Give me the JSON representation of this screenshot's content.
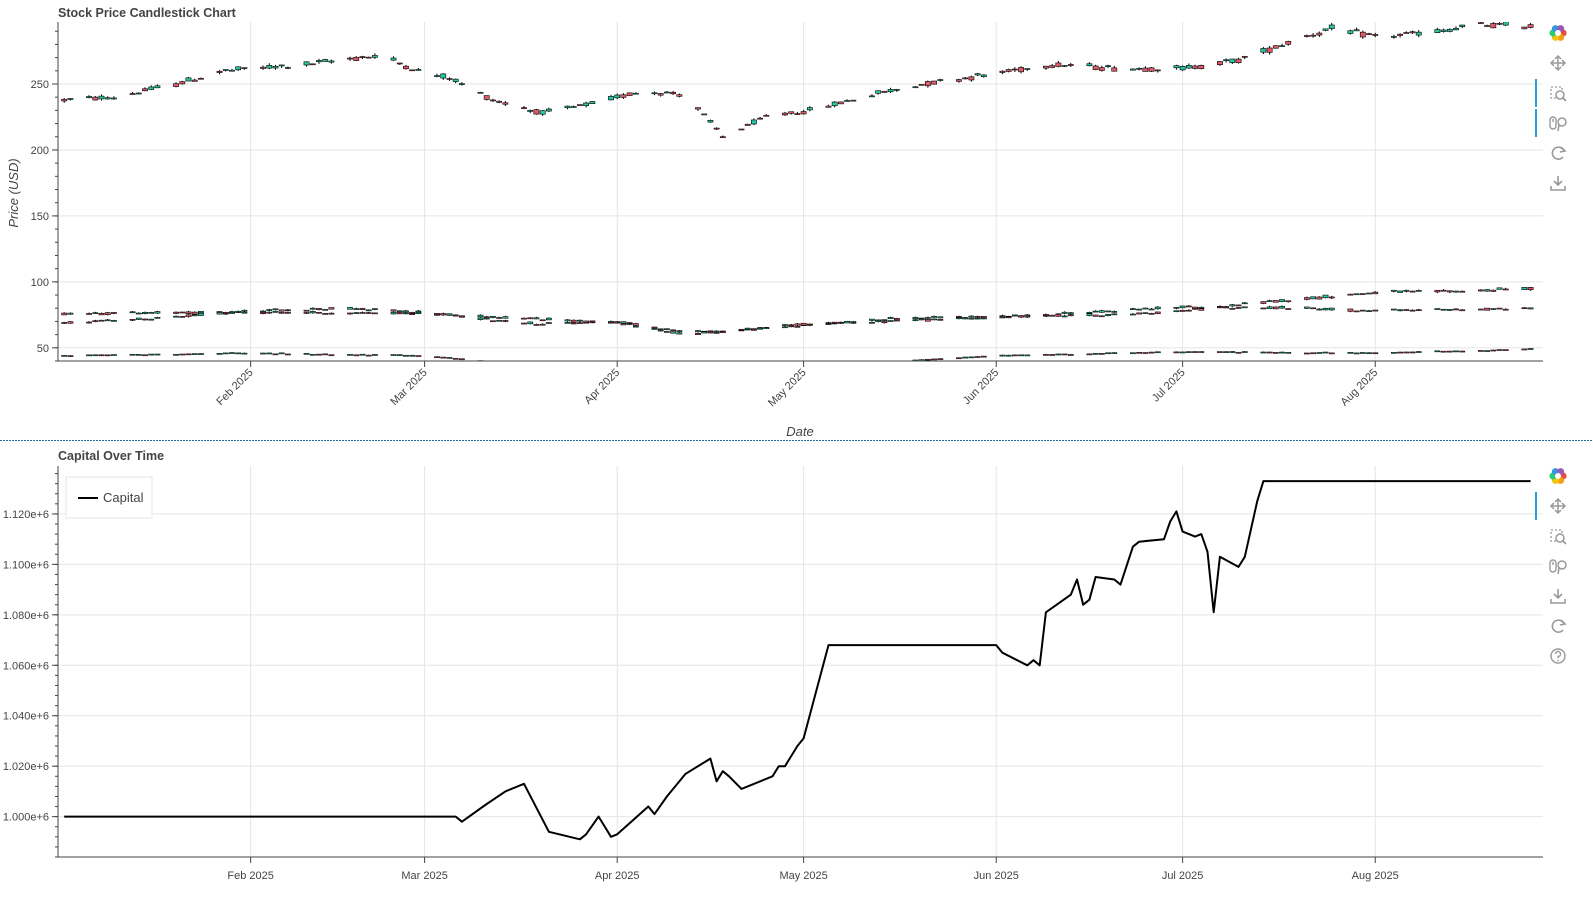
{
  "colors": {
    "up": "#26c6a0",
    "down": "#e05a6a",
    "wick": "#000000",
    "grid": "#e5e5e5",
    "axis": "#444444",
    "capital_line": "#000000",
    "divider": "#1f6fa0",
    "active_tool": "#26a0da"
  },
  "toolbar_top": [
    "bokeh-logo-icon",
    "pan-icon",
    "box-zoom-icon",
    "wheel-zoom-icon",
    "reset-icon",
    "save-icon"
  ],
  "toolbar_bottom": [
    "bokeh-logo-icon",
    "pan-icon",
    "box-zoom-icon",
    "wheel-zoom-icon",
    "save-icon",
    "reset-icon",
    "help-icon"
  ],
  "chart_data": [
    {
      "type": "candlestick",
      "title": "Stock Price Candlestick Chart",
      "xlabel": "Date",
      "ylabel": "Price (USD)",
      "xlim": [
        "2025-01-01",
        "2025-08-28"
      ],
      "ylim": [
        40,
        297
      ],
      "x_ticks": [
        "2025-02-01",
        "2025-03-01",
        "2025-04-01",
        "2025-05-01",
        "2025-06-01",
        "2025-07-01",
        "2025-08-01"
      ],
      "x_tick_labels": [
        "Feb 2025",
        "Mar 2025",
        "Apr 2025",
        "May 2025",
        "Jun 2025",
        "Jul 2025",
        "Aug 2025"
      ],
      "y_ticks": [
        50,
        100,
        150,
        200,
        250
      ],
      "grid": true,
      "series": [
        {
          "anchors": [
            [
              "2025-01-02",
              238
            ],
            [
              "2025-01-10",
              240
            ],
            [
              "2025-01-20",
              250
            ],
            [
              "2025-01-28",
              260
            ],
            [
              "2025-02-10",
              265
            ],
            [
              "2025-02-22",
              272
            ],
            [
              "2025-03-01",
              258
            ],
            [
              "2025-03-05",
              255
            ],
            [
              "2025-03-12",
              238
            ],
            [
              "2025-03-20",
              228
            ],
            [
              "2025-03-28",
              235
            ],
            [
              "2025-04-05",
              245
            ],
            [
              "2025-04-12",
              242
            ],
            [
              "2025-04-18",
              210
            ],
            [
              "2025-04-25",
              225
            ],
            [
              "2025-05-02",
              230
            ],
            [
              "2025-05-12",
              242
            ],
            [
              "2025-05-20",
              250
            ],
            [
              "2025-06-01",
              258
            ],
            [
              "2025-06-10",
              265
            ],
            [
              "2025-06-20",
              262
            ],
            [
              "2025-07-01",
              262
            ],
            [
              "2025-07-10",
              268
            ],
            [
              "2025-07-20",
              285
            ],
            [
              "2025-07-25",
              292
            ],
            [
              "2025-08-01",
              286
            ],
            [
              "2025-08-10",
              289
            ],
            [
              "2025-08-18",
              295
            ],
            [
              "2025-08-26",
              294
            ]
          ],
          "spread": 0.012
        },
        {
          "anchors": [
            [
              "2025-01-02",
              69
            ],
            [
              "2025-01-15",
              72
            ],
            [
              "2025-02-01",
              78
            ],
            [
              "2025-02-15",
              80
            ],
            [
              "2025-03-01",
              77
            ],
            [
              "2025-03-10",
              72
            ],
            [
              "2025-03-20",
              68
            ],
            [
              "2025-04-01",
              70
            ],
            [
              "2025-04-12",
              62
            ],
            [
              "2025-04-20",
              63
            ],
            [
              "2025-05-01",
              67
            ],
            [
              "2025-05-15",
              72
            ],
            [
              "2025-06-01",
              74
            ],
            [
              "2025-06-20",
              75
            ],
            [
              "2025-07-01",
              78
            ],
            [
              "2025-07-15",
              85
            ],
            [
              "2025-08-01",
              92
            ],
            [
              "2025-08-15",
              93
            ],
            [
              "2025-08-26",
              95
            ]
          ],
          "spread": 0.02
        },
        {
          "anchors": [
            [
              "2025-01-02",
              76
            ],
            [
              "2025-02-01",
              77
            ],
            [
              "2025-03-01",
              76
            ],
            [
              "2025-04-01",
              69
            ],
            [
              "2025-04-12",
              60
            ],
            [
              "2025-05-01",
              68
            ],
            [
              "2025-06-01",
              73
            ],
            [
              "2025-07-01",
              81
            ],
            [
              "2025-07-20",
              80
            ],
            [
              "2025-08-01",
              78
            ],
            [
              "2025-08-26",
              80
            ]
          ],
          "spread": 0.02
        },
        {
          "anchors": [
            [
              "2025-01-02",
              44
            ],
            [
              "2025-02-01",
              46
            ],
            [
              "2025-03-01",
              44
            ],
            [
              "2025-03-15",
              38
            ],
            [
              "2025-04-10",
              32
            ],
            [
              "2025-05-10",
              38
            ],
            [
              "2025-06-01",
              44
            ],
            [
              "2025-07-01",
              47
            ],
            [
              "2025-08-01",
              46
            ],
            [
              "2025-08-26",
              49
            ]
          ],
          "spread": 0.015
        }
      ]
    },
    {
      "type": "line",
      "title": "Capital Over Time",
      "xlabel": "",
      "ylabel": "",
      "xlim": [
        "2025-01-01",
        "2025-08-28"
      ],
      "ylim": [
        984000,
        1139000
      ],
      "x_ticks": [
        "2025-02-01",
        "2025-03-01",
        "2025-04-01",
        "2025-05-01",
        "2025-06-01",
        "2025-07-01",
        "2025-08-01"
      ],
      "x_tick_labels": [
        "Feb 2025",
        "Mar 2025",
        "Apr 2025",
        "May 2025",
        "Jun 2025",
        "Jul 2025",
        "Aug 2025"
      ],
      "y_ticks": [
        1000000,
        1020000,
        1040000,
        1060000,
        1080000,
        1100000,
        1120000
      ],
      "y_tick_labels": [
        "1.000e+6",
        "1.020e+6",
        "1.040e+6",
        "1.060e+6",
        "1.080e+6",
        "1.100e+6",
        "1.120e+6"
      ],
      "grid": true,
      "legend": {
        "position": "top-left",
        "entries": [
          "Capital"
        ]
      },
      "series": [
        {
          "name": "Capital",
          "points": [
            [
              "2025-01-02",
              1000000
            ],
            [
              "2025-03-06",
              1000000
            ],
            [
              "2025-03-07",
              998000
            ],
            [
              "2025-03-11",
              1005000
            ],
            [
              "2025-03-14",
              1010000
            ],
            [
              "2025-03-17",
              1013000
            ],
            [
              "2025-03-21",
              994000
            ],
            [
              "2025-03-26",
              991000
            ],
            [
              "2025-03-27",
              993000
            ],
            [
              "2025-03-29",
              1000000
            ],
            [
              "2025-03-31",
              992000
            ],
            [
              "2025-04-01",
              993000
            ],
            [
              "2025-04-06",
              1004000
            ],
            [
              "2025-04-07",
              1001000
            ],
            [
              "2025-04-09",
              1008000
            ],
            [
              "2025-04-12",
              1017000
            ],
            [
              "2025-04-16",
              1023000
            ],
            [
              "2025-04-17",
              1014000
            ],
            [
              "2025-04-18",
              1018000
            ],
            [
              "2025-04-19",
              1016000
            ],
            [
              "2025-04-21",
              1011000
            ],
            [
              "2025-04-26",
              1016000
            ],
            [
              "2025-04-27",
              1020000
            ],
            [
              "2025-04-28",
              1020000
            ],
            [
              "2025-04-30",
              1028000
            ],
            [
              "2025-05-01",
              1031000
            ],
            [
              "2025-05-05",
              1068000
            ],
            [
              "2025-06-01",
              1068000
            ],
            [
              "2025-06-02",
              1065000
            ],
            [
              "2025-06-06",
              1060000
            ],
            [
              "2025-06-07",
              1062000
            ],
            [
              "2025-06-08",
              1060000
            ],
            [
              "2025-06-09",
              1081000
            ],
            [
              "2025-06-13",
              1088000
            ],
            [
              "2025-06-14",
              1094000
            ],
            [
              "2025-06-15",
              1084000
            ],
            [
              "2025-06-16",
              1086000
            ],
            [
              "2025-06-17",
              1095000
            ],
            [
              "2025-06-20",
              1094000
            ],
            [
              "2025-06-21",
              1092000
            ],
            [
              "2025-06-23",
              1107000
            ],
            [
              "2025-06-24",
              1109000
            ],
            [
              "2025-06-28",
              1110000
            ],
            [
              "2025-06-29",
              1117000
            ],
            [
              "2025-06-30",
              1121000
            ],
            [
              "2025-07-01",
              1113000
            ],
            [
              "2025-07-03",
              1111000
            ],
            [
              "2025-07-04",
              1112000
            ],
            [
              "2025-07-05",
              1105000
            ],
            [
              "2025-07-06",
              1081000
            ],
            [
              "2025-07-07",
              1103000
            ],
            [
              "2025-07-10",
              1099000
            ],
            [
              "2025-07-11",
              1103000
            ],
            [
              "2025-07-13",
              1125000
            ],
            [
              "2025-07-14",
              1133000
            ],
            [
              "2025-08-26",
              1133000
            ]
          ]
        }
      ]
    }
  ]
}
